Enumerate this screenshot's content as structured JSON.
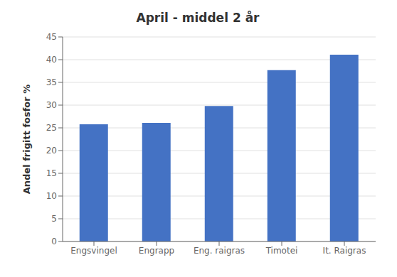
{
  "chart_data": {
    "type": "bar",
    "title": "April - middel 2 år",
    "categories": [
      "Engsvingel",
      "Engrapp",
      "Eng. raigras",
      "Timotei",
      "It. Raigras"
    ],
    "values": [
      25.8,
      26.1,
      29.8,
      37.7,
      41.1
    ],
    "color": "#4472C4",
    "ylabel": "Andel frigitt fosfor %",
    "ylim": [
      0,
      45
    ],
    "yticks": [
      0,
      5,
      10,
      15,
      20,
      25,
      30,
      35,
      40,
      45
    ],
    "grid": true
  }
}
